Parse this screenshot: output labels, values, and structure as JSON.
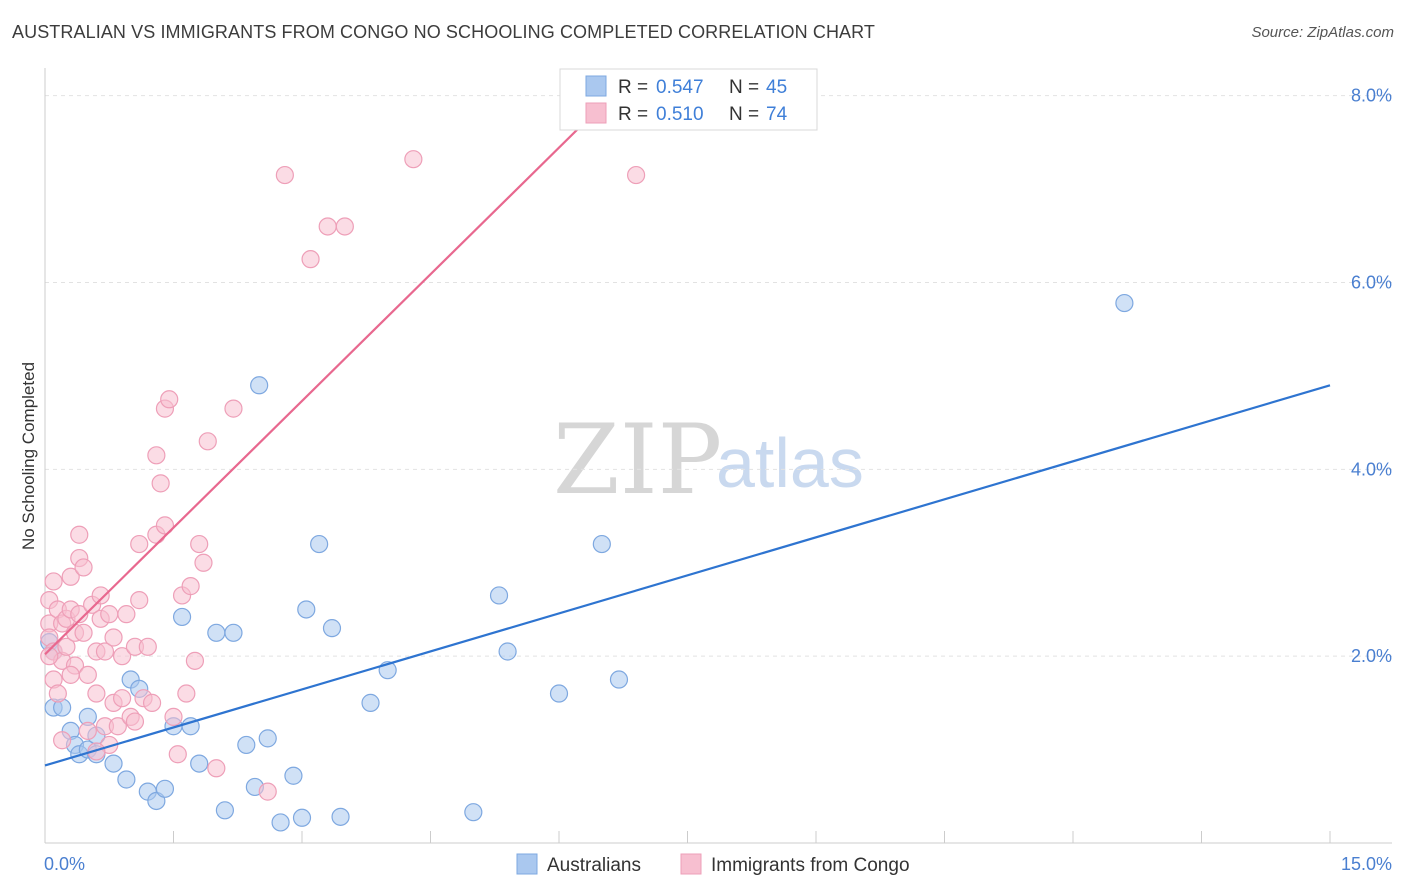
{
  "title": "AUSTRALIAN VS IMMIGRANTS FROM CONGO NO SCHOOLING COMPLETED CORRELATION CHART",
  "source": "Source: ZipAtlas.com",
  "watermark": {
    "zip": "ZIP",
    "atlas": "atlas"
  },
  "legend": {
    "rows": [
      {
        "r_label": "R = ",
        "r_value": "0.547",
        "n_label": "N = ",
        "n_value": "45"
      },
      {
        "r_label": "R = ",
        "r_value": "0.510",
        "n_label": "N = ",
        "n_value": "74"
      }
    ]
  },
  "bottom_legend": [
    "Australians",
    "Immigrants from Congo"
  ],
  "colors": {
    "blue_fill": "#aac8ef",
    "blue_stroke": "#7ea8e0",
    "blue_line": "#2e74d0",
    "pink_fill": "#f7bfd0",
    "pink_stroke": "#ee9fb8",
    "pink_line": "#e8688f"
  },
  "chart_data": {
    "type": "scatter",
    "title": "AUSTRALIAN VS IMMIGRANTS FROM CONGO NO SCHOOLING COMPLETED CORRELATION CHART",
    "xlabel": "",
    "ylabel": "No Schooling Completed",
    "xlim": [
      0,
      15
    ],
    "ylim": [
      0,
      8.2
    ],
    "x_tick_labels": [
      "0.0%",
      "15.0%"
    ],
    "y_ticks": [
      2,
      4,
      6,
      8
    ],
    "y_tick_labels": [
      "2.0%",
      "4.0%",
      "6.0%",
      "8.0%"
    ],
    "grid": true,
    "series": [
      {
        "name": "Australians",
        "r": 0.547,
        "n": 45,
        "trend": {
          "x": [
            0,
            15
          ],
          "y": [
            0.83,
            4.9
          ]
        },
        "points": [
          [
            0.05,
            2.15
          ],
          [
            0.1,
            2.05
          ],
          [
            0.1,
            1.45
          ],
          [
            0.2,
            1.45
          ],
          [
            0.3,
            1.2
          ],
          [
            0.35,
            1.05
          ],
          [
            0.4,
            0.95
          ],
          [
            0.5,
            1.0
          ],
          [
            0.5,
            1.35
          ],
          [
            0.6,
            1.15
          ],
          [
            0.6,
            0.95
          ],
          [
            0.8,
            0.85
          ],
          [
            0.95,
            0.68
          ],
          [
            1.0,
            1.75
          ],
          [
            1.1,
            1.65
          ],
          [
            1.2,
            0.55
          ],
          [
            1.3,
            0.45
          ],
          [
            1.4,
            0.58
          ],
          [
            1.5,
            1.25
          ],
          [
            1.6,
            2.42
          ],
          [
            1.7,
            1.25
          ],
          [
            1.8,
            0.85
          ],
          [
            2.0,
            2.25
          ],
          [
            2.2,
            2.25
          ],
          [
            2.1,
            0.35
          ],
          [
            2.35,
            1.05
          ],
          [
            2.45,
            0.6
          ],
          [
            2.5,
            4.9
          ],
          [
            2.6,
            1.12
          ],
          [
            2.75,
            0.22
          ],
          [
            2.9,
            0.72
          ],
          [
            3.0,
            0.27
          ],
          [
            3.05,
            2.5
          ],
          [
            3.2,
            3.2
          ],
          [
            3.35,
            2.3
          ],
          [
            3.45,
            0.28
          ],
          [
            3.8,
            1.5
          ],
          [
            4.0,
            1.85
          ],
          [
            5.0,
            0.33
          ],
          [
            5.3,
            2.65
          ],
          [
            5.4,
            2.05
          ],
          [
            6.0,
            1.6
          ],
          [
            6.5,
            3.2
          ],
          [
            6.7,
            1.75
          ],
          [
            12.6,
            5.78
          ]
        ]
      },
      {
        "name": "Immigrants from Congo",
        "r": 0.51,
        "n": 74,
        "trend": {
          "x": [
            0,
            7.5
          ],
          "y": [
            2.02,
            8.8
          ]
        },
        "points": [
          [
            0.05,
            2.6
          ],
          [
            0.05,
            2.35
          ],
          [
            0.05,
            2.2
          ],
          [
            0.1,
            2.05
          ],
          [
            0.1,
            1.75
          ],
          [
            0.1,
            2.8
          ],
          [
            0.15,
            2.5
          ],
          [
            0.15,
            1.6
          ],
          [
            0.2,
            2.35
          ],
          [
            0.2,
            1.95
          ],
          [
            0.2,
            1.1
          ],
          [
            0.25,
            2.4
          ],
          [
            0.25,
            2.1
          ],
          [
            0.3,
            2.85
          ],
          [
            0.3,
            2.5
          ],
          [
            0.35,
            2.25
          ],
          [
            0.35,
            1.9
          ],
          [
            0.4,
            3.3
          ],
          [
            0.4,
            3.05
          ],
          [
            0.4,
            2.45
          ],
          [
            0.45,
            2.95
          ],
          [
            0.45,
            2.25
          ],
          [
            0.5,
            1.8
          ],
          [
            0.5,
            1.2
          ],
          [
            0.55,
            2.55
          ],
          [
            0.6,
            2.05
          ],
          [
            0.6,
            1.6
          ],
          [
            0.65,
            2.4
          ],
          [
            0.65,
            2.65
          ],
          [
            0.7,
            2.05
          ],
          [
            0.7,
            1.25
          ],
          [
            0.75,
            2.45
          ],
          [
            0.75,
            1.05
          ],
          [
            0.8,
            2.2
          ],
          [
            0.8,
            1.5
          ],
          [
            0.85,
            1.25
          ],
          [
            0.9,
            2.0
          ],
          [
            0.9,
            1.55
          ],
          [
            0.95,
            2.45
          ],
          [
            1.0,
            1.35
          ],
          [
            1.05,
            2.1
          ],
          [
            1.05,
            1.3
          ],
          [
            1.1,
            3.2
          ],
          [
            1.1,
            2.6
          ],
          [
            1.15,
            1.55
          ],
          [
            1.2,
            2.1
          ],
          [
            1.25,
            1.5
          ],
          [
            1.3,
            3.3
          ],
          [
            1.3,
            4.15
          ],
          [
            1.35,
            3.85
          ],
          [
            1.4,
            3.4
          ],
          [
            1.4,
            4.65
          ],
          [
            1.45,
            4.75
          ],
          [
            1.5,
            1.35
          ],
          [
            1.55,
            0.95
          ],
          [
            1.6,
            2.65
          ],
          [
            1.65,
            1.6
          ],
          [
            1.7,
            2.75
          ],
          [
            1.75,
            1.95
          ],
          [
            1.8,
            3.2
          ],
          [
            1.85,
            3.0
          ],
          [
            1.9,
            4.3
          ],
          [
            2.0,
            0.8
          ],
          [
            2.2,
            4.65
          ],
          [
            2.6,
            0.55
          ],
          [
            2.8,
            7.15
          ],
          [
            3.1,
            6.25
          ],
          [
            3.3,
            6.6
          ],
          [
            3.5,
            6.6
          ],
          [
            4.3,
            7.32
          ],
          [
            6.9,
            7.15
          ],
          [
            0.05,
            2.0
          ],
          [
            0.3,
            1.8
          ],
          [
            0.6,
            0.98
          ]
        ]
      }
    ]
  }
}
